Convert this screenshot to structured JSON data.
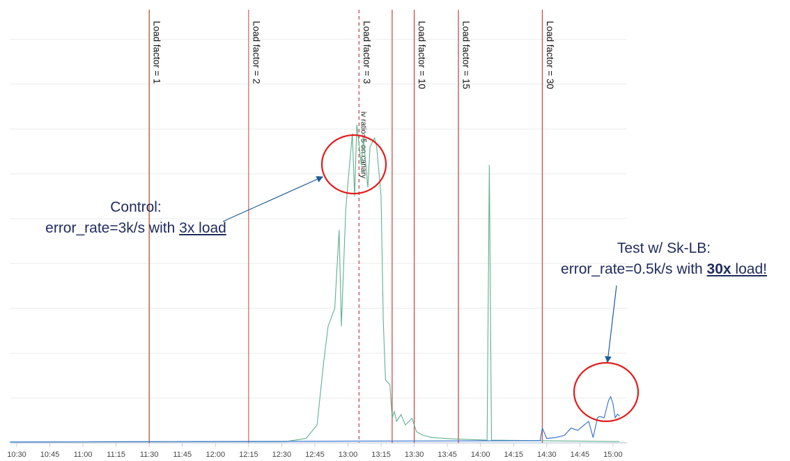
{
  "chart_data": {
    "type": "line",
    "title": "",
    "xlabel": "",
    "ylabel": "",
    "xlim": [
      "10:30",
      "15:03"
    ],
    "ylim": [
      0,
      9.5
    ],
    "grid": true,
    "x_ticks": [
      "10:30",
      "10:45",
      "11:00",
      "11:15",
      "11:30",
      "11:45",
      "12:00",
      "12:15",
      "12:30",
      "12:45",
      "13:00",
      "13:15",
      "13:30",
      "13:45",
      "14:00",
      "14:15",
      "14:30",
      "14:45",
      "15:00"
    ],
    "series": [
      {
        "color": "#5fb08d",
        "points": [
          [
            "10:27",
            0.02
          ],
          [
            "12:32",
            0.03
          ],
          [
            "12:41",
            0.1
          ],
          [
            "12:46",
            0.4
          ],
          [
            "12:49",
            1.8
          ],
          [
            "12:51",
            2.6
          ],
          [
            "12:54",
            3.0
          ],
          [
            "12:56",
            4.75
          ],
          [
            "12:57",
            2.6
          ],
          [
            "12:59",
            5.2
          ],
          [
            "13:00",
            5.8
          ],
          [
            "13:02",
            6.9
          ],
          [
            "13:03",
            5.5
          ],
          [
            "13:04",
            7.1
          ],
          [
            "13:06",
            6.2
          ],
          [
            "13:07",
            6.8
          ],
          [
            "13:09",
            5.7
          ],
          [
            "13:10",
            6.6
          ],
          [
            "13:12",
            6.8
          ],
          [
            "13:13",
            6.6
          ],
          [
            "13:15",
            5.5
          ],
          [
            "13:16",
            2.7
          ],
          [
            "13:17",
            1.4
          ],
          [
            "13:19",
            1.3
          ],
          [
            "13:20",
            0.55
          ],
          [
            "13:21",
            0.7
          ],
          [
            "13:22",
            0.48
          ],
          [
            "13:24",
            0.63
          ],
          [
            "13:26",
            0.4
          ],
          [
            "13:29",
            0.55
          ],
          [
            "13:31",
            0.25
          ],
          [
            "13:34",
            0.17
          ],
          [
            "13:38",
            0.12
          ],
          [
            "13:47",
            0.09
          ],
          [
            "14:03",
            0.06
          ],
          [
            "14:04",
            6.2
          ],
          [
            "14:05",
            0.06
          ],
          [
            "15:03",
            0.03
          ]
        ]
      },
      {
        "color": "#2f6fcf",
        "points": [
          [
            "10:27",
            0.02
          ],
          [
            "14:27",
            0.05
          ],
          [
            "14:28",
            0.33
          ],
          [
            "14:30",
            0.1
          ],
          [
            "14:34",
            0.12
          ],
          [
            "14:38",
            0.17
          ],
          [
            "14:41",
            0.33
          ],
          [
            "14:44",
            0.28
          ],
          [
            "14:47",
            0.4
          ],
          [
            "14:49",
            0.48
          ],
          [
            "14:51",
            0.12
          ],
          [
            "14:53",
            0.56
          ],
          [
            "14:54",
            0.59
          ],
          [
            "14:56",
            0.56
          ],
          [
            "14:58",
            0.95
          ],
          [
            "14:59",
            1.03
          ],
          [
            "15:00",
            0.87
          ],
          [
            "15:01",
            0.56
          ],
          [
            "15:02",
            0.64
          ],
          [
            "15:03",
            0.6
          ]
        ]
      }
    ],
    "markers": [
      {
        "time": "11:30",
        "label": "Load factor = 1",
        "color": "#b5522a",
        "style": "solid"
      },
      {
        "time": "12:15",
        "label": "Load factor = 2",
        "color": "#d46a6a",
        "style": "solid"
      },
      {
        "time": "13:05",
        "label": "Load factor = 3",
        "color": "#c0504d",
        "style": "dashed"
      },
      {
        "time": "13:20",
        "label": "",
        "color": "#c0504d",
        "style": "solid"
      },
      {
        "time": "13:30",
        "label": "Load factor = 10",
        "color": "#c0504d",
        "style": "solid"
      },
      {
        "time": "13:50",
        "label": "Load factor = 15",
        "color": "#c0504d",
        "style": "solid"
      },
      {
        "time": "14:28",
        "label": "Load factor = 30",
        "color": "#c0504d",
        "style": "solid"
      }
    ],
    "canary_label": "iv ratio=5 on canary",
    "annotations": {
      "control": {
        "line1": "Control:",
        "line2_prefix": "error_rate=3k/s with ",
        "line2_underlined": "3x load"
      },
      "test": {
        "line1": "Test w/ Sk-LB:",
        "line2_prefix": "error_rate=0.5k/s with ",
        "line2_bold": "30x",
        "line2_suffix": " load!"
      }
    },
    "highlight_color": "#e31c1c",
    "arrow_color": "#1f5c99"
  }
}
